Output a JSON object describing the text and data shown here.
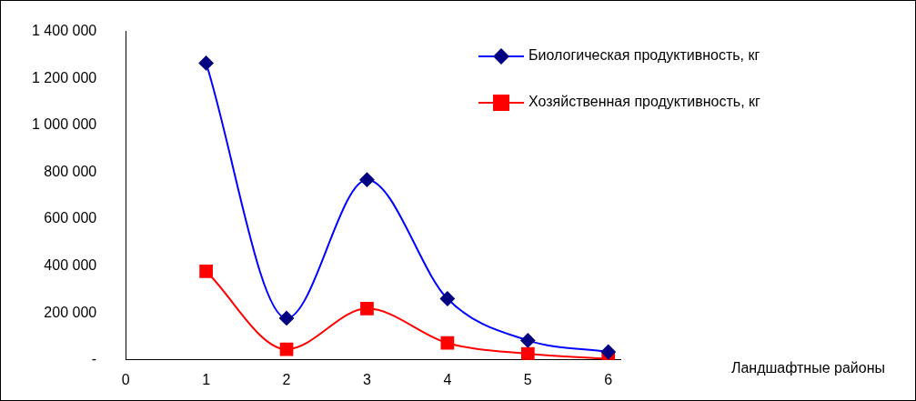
{
  "chart_data": {
    "type": "line",
    "annotations": [
      "Ландшафтные районы"
    ],
    "x": [
      1,
      2,
      3,
      4,
      5,
      6
    ],
    "xlim": [
      0,
      6.15
    ],
    "xticks": [
      0,
      1,
      2,
      3,
      4,
      5,
      6
    ],
    "ylim": [
      0,
      1400000
    ],
    "yticks": [
      {
        "value": 0,
        "label": "-"
      },
      {
        "value": 200000,
        "label": "200 000"
      },
      {
        "value": 400000,
        "label": "400 000"
      },
      {
        "value": 600000,
        "label": "600 000"
      },
      {
        "value": 800000,
        "label": "800 000"
      },
      {
        "value": 1000000,
        "label": "1 000 000"
      },
      {
        "value": 1200000,
        "label": "1 200 000"
      },
      {
        "value": 1400000,
        "label": "1 400 000"
      }
    ],
    "grid": false,
    "legend": "top right",
    "series": [
      {
        "name": "Биологическая продуктивность, кг",
        "color": "#0000ff",
        "marker": "diamond",
        "values": [
          1265000,
          178000,
          768000,
          261000,
          83000,
          34000
        ]
      },
      {
        "name": "Хозяйственная продуктивность, кг",
        "color": "#ff0000",
        "marker": "square",
        "values": [
          378000,
          45000,
          219000,
          72000,
          26000,
          4000
        ]
      }
    ]
  }
}
